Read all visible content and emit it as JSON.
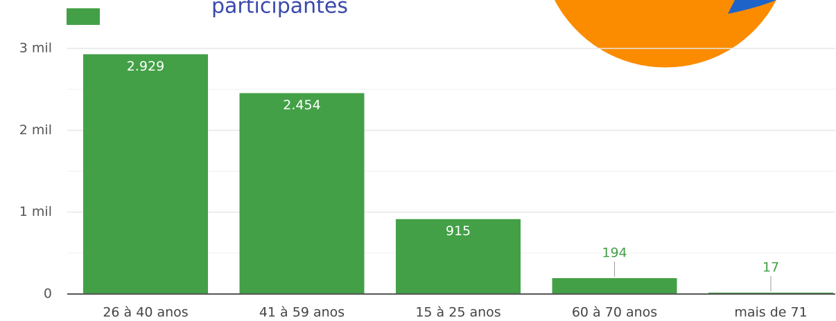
{
  "chart_data": {
    "type": "bar",
    "title": "participantes",
    "categories": [
      "26 à 40 anos",
      "41 à 59 anos",
      "15 à 25 anos",
      "60 à 70 anos",
      "mais de 71"
    ],
    "values": [
      2929,
      2454,
      915,
      194,
      17
    ],
    "value_labels": [
      "2.929",
      "2.454",
      "915",
      "194",
      "17"
    ],
    "color": "#43a047",
    "ylim": [
      0,
      3000
    ],
    "yticks": [
      {
        "value": 0,
        "label": "0"
      },
      {
        "value": 1000,
        "label": "1 mil"
      },
      {
        "value": 2000,
        "label": "2 mil"
      },
      {
        "value": 3000,
        "label": "3 mil"
      }
    ],
    "minor_yticks": [
      500,
      1500,
      2500
    ],
    "grid": true
  }
}
